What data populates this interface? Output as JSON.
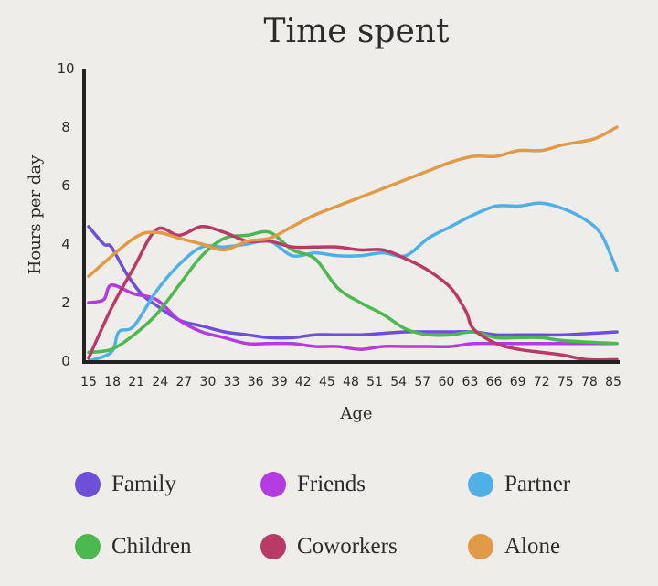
{
  "chart_data": {
    "type": "line",
    "title": "Time spent",
    "xlabel": "Age",
    "ylabel": "Hours per day",
    "ylim": [
      0,
      10
    ],
    "yticks": [
      "0",
      "2",
      "4",
      "6",
      "8",
      "10"
    ],
    "xticks": [
      "15",
      "18",
      "21",
      "24",
      "27",
      "30",
      "33",
      "36",
      "39",
      "42",
      "45",
      "48",
      "51",
      "54",
      "57",
      "60",
      "63",
      "66",
      "69",
      "72",
      "75",
      "78",
      "85"
    ],
    "xlim": [
      15,
      85
    ],
    "grid": false,
    "legend_position": "bottom",
    "series": [
      {
        "name": "Family",
        "color": "#6e4fd8",
        "x": [
          15,
          17,
          18,
          20,
          22,
          24,
          27,
          30,
          33,
          36,
          39,
          42,
          45,
          48,
          51,
          54,
          57,
          60,
          63,
          66,
          69,
          72,
          75,
          78,
          85
        ],
        "y": [
          4.6,
          4.0,
          3.9,
          3.0,
          2.3,
          1.9,
          1.4,
          1.2,
          1.0,
          0.9,
          0.8,
          0.8,
          0.9,
          0.9,
          0.9,
          0.95,
          1.0,
          1.0,
          1.0,
          1.0,
          0.9,
          0.9,
          0.9,
          0.9,
          1.0
        ]
      },
      {
        "name": "Friends",
        "color": "#b33be0",
        "x": [
          15,
          17,
          18,
          21,
          24,
          27,
          30,
          33,
          36,
          39,
          42,
          45,
          48,
          51,
          54,
          57,
          60,
          63,
          66,
          69,
          72,
          75,
          78,
          85
        ],
        "y": [
          2.0,
          2.1,
          2.6,
          2.3,
          2.1,
          1.4,
          1.0,
          0.8,
          0.6,
          0.6,
          0.6,
          0.5,
          0.5,
          0.4,
          0.5,
          0.5,
          0.5,
          0.5,
          0.6,
          0.6,
          0.6,
          0.6,
          0.6,
          0.6
        ]
      },
      {
        "name": "Partner",
        "color": "#4fb0e8",
        "x": [
          15,
          18,
          19,
          21,
          24,
          27,
          30,
          33,
          36,
          39,
          42,
          45,
          48,
          51,
          54,
          57,
          60,
          63,
          66,
          69,
          72,
          75,
          78,
          81,
          83,
          85
        ],
        "y": [
          0,
          0.3,
          1.0,
          1.2,
          2.4,
          3.3,
          3.9,
          3.9,
          4.0,
          4.1,
          3.6,
          3.7,
          3.6,
          3.6,
          3.7,
          3.6,
          4.2,
          4.6,
          5.0,
          5.3,
          5.3,
          5.4,
          5.2,
          4.8,
          4.3,
          3.1
        ]
      },
      {
        "name": "Children",
        "color": "#4cb850",
        "x": [
          15,
          18,
          21,
          24,
          27,
          30,
          33,
          36,
          39,
          42,
          45,
          48,
          51,
          54,
          57,
          60,
          63,
          66,
          69,
          72,
          75,
          78,
          85
        ],
        "y": [
          0.3,
          0.4,
          0.9,
          1.6,
          2.6,
          3.6,
          4.2,
          4.3,
          4.4,
          3.8,
          3.5,
          2.5,
          2.0,
          1.6,
          1.1,
          0.9,
          0.9,
          1.0,
          0.8,
          0.8,
          0.8,
          0.7,
          0.6
        ]
      },
      {
        "name": "Coworkers",
        "color": "#b83a66",
        "x": [
          15,
          18,
          21,
          24,
          27,
          30,
          33,
          36,
          39,
          42,
          45,
          48,
          51,
          54,
          57,
          60,
          63,
          65,
          66,
          69,
          72,
          75,
          78,
          81,
          85
        ],
        "y": [
          0.1,
          1.8,
          3.2,
          4.5,
          4.3,
          4.6,
          4.4,
          4.1,
          4.1,
          3.9,
          3.9,
          3.9,
          3.8,
          3.8,
          3.5,
          3.1,
          2.5,
          1.7,
          1.1,
          0.6,
          0.4,
          0.3,
          0.2,
          0.05,
          0.05
        ]
      },
      {
        "name": "Alone",
        "color": "#e09a48",
        "x": [
          15,
          21,
          24,
          27,
          30,
          33,
          36,
          39,
          42,
          45,
          48,
          51,
          54,
          57,
          60,
          63,
          66,
          69,
          72,
          75,
          78,
          82,
          85
        ],
        "y": [
          2.9,
          4.2,
          4.4,
          4.2,
          4.0,
          3.8,
          4.1,
          4.2,
          4.6,
          5.0,
          5.3,
          5.6,
          5.9,
          6.2,
          6.5,
          6.8,
          7.0,
          7.0,
          7.2,
          7.2,
          7.4,
          7.6,
          8.0
        ]
      }
    ]
  }
}
